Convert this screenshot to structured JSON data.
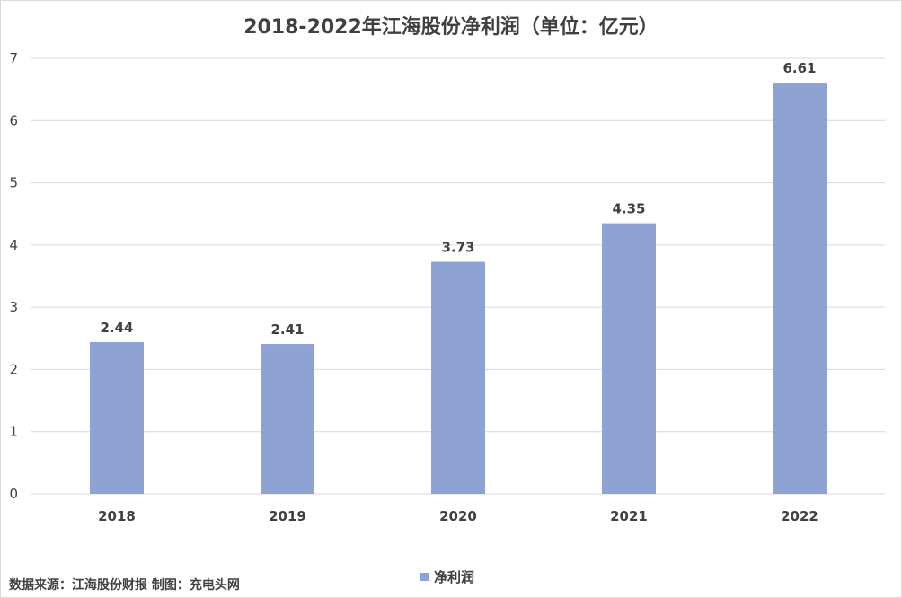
{
  "chart_data": {
    "type": "bar",
    "title": "2018-2022年江海股份净利润（单位：亿元）",
    "categories": [
      "2018",
      "2019",
      "2020",
      "2021",
      "2022"
    ],
    "series": [
      {
        "name": "净利润",
        "values": [
          2.44,
          2.41,
          3.73,
          4.35,
          6.61
        ],
        "color": "#8fa2d4"
      }
    ],
    "data_labels": [
      "2.44",
      "2.41",
      "3.73",
      "4.35",
      "6.61"
    ],
    "ylim": [
      0,
      7
    ],
    "yticks": [
      "0",
      "1",
      "2",
      "3",
      "4",
      "5",
      "6",
      "7"
    ],
    "grid": true,
    "legend_position": "bottom-center"
  },
  "footer": {
    "source_note": "数据来源：江海股份财报 制图：充电头网"
  },
  "colors": {
    "bar": "#8fa2d4",
    "grid": "#d9d9d9",
    "text": "#404040"
  }
}
